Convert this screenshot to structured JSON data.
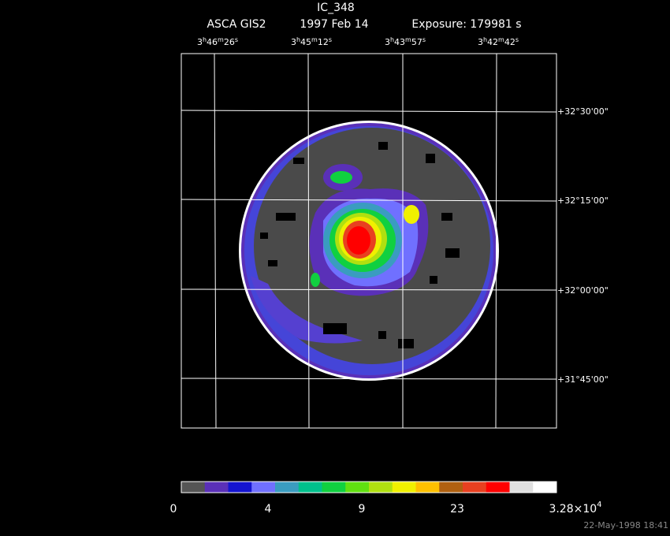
{
  "header": {
    "title": "IC_348",
    "instrument": "ASCA GIS2",
    "date": "1997 Feb 14",
    "exposure": "Exposure: 179981 s"
  },
  "ra_labels": [
    [
      "3",
      "h",
      "46",
      "m",
      "26",
      "s"
    ],
    [
      "3",
      "h",
      "45",
      "m",
      "12",
      "s"
    ],
    [
      "3",
      "h",
      "43",
      "m",
      "57",
      "s"
    ],
    [
      "3",
      "h",
      "42",
      "m",
      "42",
      "s"
    ]
  ],
  "dec_labels": [
    "+32°30'00\"",
    "+32°15'00\"",
    "+32°00'00\"",
    "+31°45'00\""
  ],
  "colorbar": {
    "colors": [
      "#555555",
      "#5a30b8",
      "#1414d0",
      "#7070ff",
      "#3a9cc0",
      "#00c08c",
      "#10d040",
      "#60e010",
      "#b0e010",
      "#f0f000",
      "#ffc000",
      "#b06010",
      "#e84020",
      "#ff0000",
      "#e0e0e0",
      "#ffffff"
    ],
    "labels": [
      [
        "0"
      ],
      [
        "4"
      ],
      [
        "9"
      ],
      [
        "23"
      ],
      [
        "3.28×10",
        "4"
      ]
    ]
  },
  "timestamp": "22-May-1998 18:41"
}
